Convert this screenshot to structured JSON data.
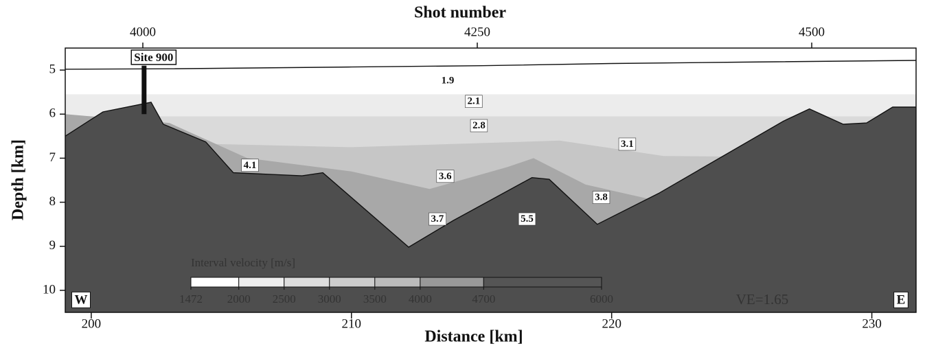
{
  "chart_data": {
    "type": "velocity-section",
    "title": "Shot number",
    "xlabel": "Distance [km]",
    "ylabel": "Depth [km]",
    "xlim": [
      199,
      231.7
    ],
    "xticks": [
      200,
      210,
      220,
      230
    ],
    "x2lim": [
      3942,
      4578
    ],
    "x2ticks": [
      4000,
      4250,
      4500
    ],
    "ylim": [
      10.5,
      4.5
    ],
    "yticks": [
      5,
      6,
      7,
      8,
      9,
      10
    ],
    "layers": [
      {
        "color": "#ffffff",
        "outline": true,
        "x": [
          199,
          203,
          210,
          215,
          220,
          225,
          231.7
        ],
        "y": [
          4.98,
          4.97,
          4.93,
          4.9,
          4.85,
          4.82,
          4.78
        ]
      },
      {
        "color": "#ececec",
        "outline": false,
        "x": [
          199,
          231.7
        ],
        "y": [
          5.55,
          5.55
        ]
      },
      {
        "color": "#dadada",
        "outline": false,
        "x": [
          199,
          231.7
        ],
        "y": [
          6.05,
          6.05
        ]
      },
      {
        "color": "#c6c6c6",
        "outline": false,
        "x": [
          199,
          210,
          218,
          222,
          231.7
        ],
        "y": [
          6.6,
          6.75,
          6.6,
          6.95,
          7.0
        ]
      },
      {
        "color": "#a8a8a8",
        "outline": false,
        "x": [
          199,
          203,
          206,
          210,
          213,
          216,
          217,
          219,
          222,
          231.7
        ],
        "y": [
          6.0,
          6.2,
          7.0,
          7.3,
          7.7,
          7.2,
          7.0,
          7.6,
          8.0,
          8.2
        ]
      },
      {
        "color": "#4e4e4e",
        "outline": true,
        "x": [
          199,
          200.45,
          202.3,
          202.77,
          204.4,
          205.46,
          208.1,
          208.9,
          212.2,
          213.9,
          216.94,
          217.6,
          219.45,
          221.8,
          226.6,
          227.6,
          228.9,
          229.8,
          230.8,
          231.7
        ],
        "y": [
          6.5,
          5.95,
          5.73,
          6.23,
          6.63,
          7.33,
          7.4,
          7.33,
          9.02,
          8.42,
          7.44,
          7.48,
          8.5,
          7.8,
          6.16,
          5.88,
          6.23,
          6.2,
          5.84,
          5.84
        ]
      }
    ],
    "annotations": [
      {
        "label": "1.9",
        "x": 213.7,
        "y": 5.25,
        "boxed": false
      },
      {
        "label": "2.1",
        "x": 214.7,
        "y": 5.72,
        "boxed": true
      },
      {
        "label": "2.8",
        "x": 214.9,
        "y": 6.27,
        "boxed": true
      },
      {
        "label": "3.1",
        "x": 220.6,
        "y": 6.69,
        "boxed": true
      },
      {
        "label": "4.1",
        "x": 206.1,
        "y": 7.17,
        "boxed": true
      },
      {
        "label": "3.6",
        "x": 213.6,
        "y": 7.42,
        "boxed": true
      },
      {
        "label": "3.8",
        "x": 219.6,
        "y": 7.9,
        "boxed": true
      },
      {
        "label": "3.7",
        "x": 213.3,
        "y": 8.39,
        "boxed": true
      },
      {
        "label": "5.5",
        "x": 216.75,
        "y": 8.39,
        "boxed": true
      }
    ],
    "site": {
      "label": "Site 900",
      "x": 202.03,
      "depth": [
        4.9,
        6.0
      ]
    },
    "west_label": "W",
    "east_label": "E",
    "ve_label": "VE=1.65",
    "colorbar": {
      "label": "Interval velocity [m/s]",
      "lim": [
        1472,
        6000
      ],
      "ticks": [
        1472,
        2000,
        2500,
        3000,
        3500,
        4000,
        4700,
        6000
      ],
      "colors": [
        "#ffffff",
        "#eeeeee",
        "#dddddd",
        "#cccccc",
        "#bbbbbb",
        "#999999",
        "#555555"
      ]
    }
  }
}
